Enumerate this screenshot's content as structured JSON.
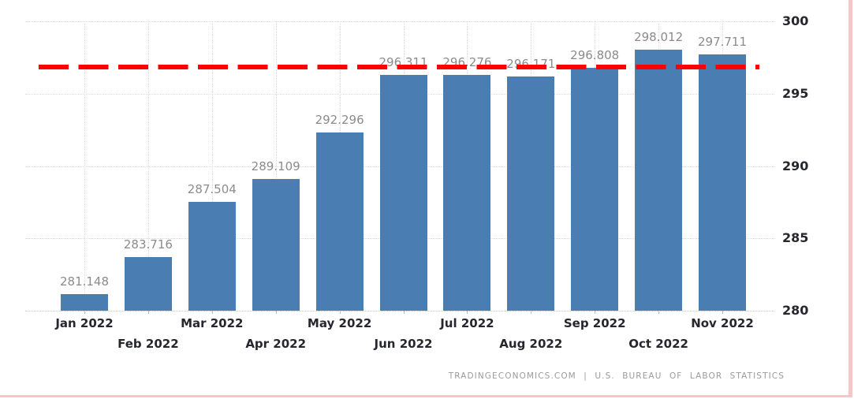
{
  "chart_data": {
    "type": "bar",
    "title": "",
    "xlabel": "",
    "ylabel": "",
    "categories": [
      "Jan 2022",
      "Feb 2022",
      "Mar 2022",
      "Apr 2022",
      "May 2022",
      "Jun 2022",
      "Jul 2022",
      "Aug 2022",
      "Sep 2022",
      "Oct 2022",
      "Nov 2022"
    ],
    "values": [
      281.148,
      283.716,
      287.504,
      289.109,
      292.296,
      296.311,
      296.276,
      296.171,
      296.808,
      298.012,
      297.711
    ],
    "value_labels": [
      "281.148",
      "283.716",
      "287.504",
      "289.109",
      "292.296",
      "296.311",
      "296.276",
      "296.171",
      "296.808",
      "298.012",
      "297.711"
    ],
    "ylim": [
      280,
      300
    ],
    "y_ticks": [
      280,
      285,
      290,
      295,
      300
    ],
    "y_tick_labels": [
      "280",
      "285",
      "290",
      "295",
      "300"
    ],
    "y_axis_side": "right",
    "grid": true,
    "x_labels_staggered": true,
    "legend": null,
    "reference_line": {
      "value_estimate": 296.85,
      "style": "dashed",
      "color": "#ff0000"
    }
  },
  "attribution": {
    "text": "TRADINGECONOMICS.COM | U.S. BUREAU OF LABOR STATISTICS"
  },
  "colors": {
    "background": "#ffffff",
    "bar": "#4a7eb3",
    "reference_line": "#ff0000",
    "grid": "#dcdcdc",
    "axis_label": "#26262e",
    "value_label": "#8b8b8b",
    "attribution": "#9b9b9b",
    "frame_border": "#f5c7c5"
  }
}
